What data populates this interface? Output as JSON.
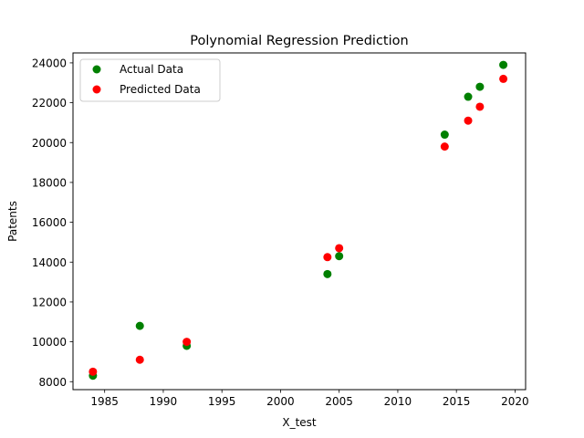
{
  "chart_data": {
    "type": "scatter",
    "title": "Polynomial Regression Prediction",
    "xlabel": "X_test",
    "ylabel": "Patents",
    "xlim": [
      1982.3,
      2020.9
    ],
    "ylim": [
      7600,
      24500
    ],
    "xticks": [
      1985,
      1990,
      1995,
      2000,
      2005,
      2010,
      2015,
      2020
    ],
    "yticks": [
      8000,
      10000,
      12000,
      14000,
      16000,
      18000,
      20000,
      22000,
      24000
    ],
    "grid": false,
    "legend_position": "top-left",
    "series": [
      {
        "name": "Actual Data",
        "color": "#008000",
        "x": [
          1984,
          1988,
          1992,
          2004,
          2005,
          2014,
          2016,
          2017,
          2019
        ],
        "y": [
          8300,
          10800,
          9800,
          13400,
          14300,
          20400,
          22300,
          22800,
          23900
        ]
      },
      {
        "name": "Predicted Data",
        "color": "#ff0000",
        "x": [
          1984,
          1988,
          1992,
          2004,
          2005,
          2014,
          2016,
          2017,
          2019
        ],
        "y": [
          8500,
          9100,
          10000,
          14250,
          14700,
          19800,
          21100,
          21800,
          23200
        ]
      }
    ]
  }
}
